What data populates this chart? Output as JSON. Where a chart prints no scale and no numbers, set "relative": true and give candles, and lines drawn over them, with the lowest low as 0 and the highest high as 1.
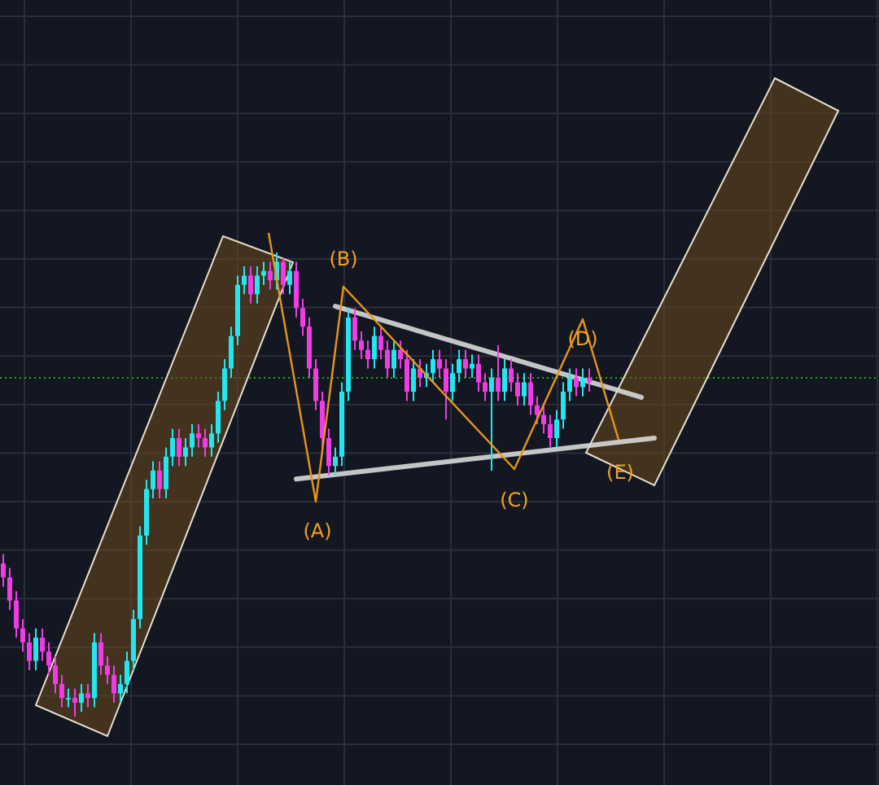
{
  "chart_data": {
    "type": "candlestick",
    "relative": true,
    "grid": true,
    "series": [
      {
        "type": "line",
        "color": "#d8d8d8",
        "values": [
          null,
          null,
          null,
          null,
          null,
          null,
          null,
          null,
          null,
          null,
          null,
          null,
          null,
          null,
          null,
          null,
          null,
          null,
          null,
          null,
          null,
          null,
          null,
          null,
          null,
          null,
          null,
          null,
          null,
          null,
          null,
          null,
          null,
          null,
          null,
          null,
          null,
          null,
          null,
          null,
          null,
          null,
          null,
          null,
          null,
          null,
          null,
          null,
          null,
          null,
          null,
          0.884,
          null,
          null,
          null,
          null,
          null,
          null,
          null,
          null,
          null,
          null,
          null,
          null,
          null,
          null,
          null,
          null,
          null,
          null,
          null,
          null,
          null,
          null,
          null,
          null,
          null,
          null,
          null,
          null,
          null,
          null,
          null,
          null,
          null,
          null,
          null,
          null,
          null,
          null,
          null,
          null,
          null,
          null,
          null,
          null,
          null,
          null,
          0.688,
          null,
          null
        ]
      },
      {
        "type": "line",
        "color": "#d8d8d8",
        "values": [
          null,
          null,
          null,
          null,
          null,
          null,
          null,
          null,
          null,
          null,
          null,
          null,
          null,
          null,
          null,
          null,
          null,
          null,
          null,
          null,
          null,
          null,
          null,
          null,
          null,
          null,
          null,
          null,
          null,
          null,
          null,
          null,
          null,
          null,
          null,
          null,
          null,
          null,
          null,
          null,
          null,
          null,
          null,
          null,
          null,
          0.512,
          null,
          null,
          null,
          null,
          null,
          null,
          null,
          null,
          null,
          null,
          null,
          null,
          null,
          null,
          null,
          null,
          null,
          null,
          null,
          null,
          null,
          null,
          null,
          null,
          null,
          null,
          null,
          null,
          null,
          null,
          null,
          null,
          null,
          null,
          null,
          null,
          null,
          null,
          null,
          null,
          null,
          null,
          null,
          null,
          null,
          null,
          null,
          null,
          null,
          null,
          null,
          null,
          null,
          null,
          0.6
        ]
      }
    ],
    "colors": [
      "#f03ce6",
      "#f03ce6",
      "#f03ce6",
      "#f03ce6",
      "#f03ce6",
      "#22e6f0",
      "#f03ce6",
      "#f03ce6",
      "#f03ce6",
      "#f03ce6",
      "#22e6f0",
      "#f03ce6",
      "#22e6f0",
      "#f03ce6",
      "#22e6f0",
      "#f03ce6",
      "#f03ce6",
      "#f03ce6",
      "#22e6f0",
      "#22e6f0",
      "#22e6f0",
      "#22e6f0",
      "#22e6f0",
      "#22e6f0",
      "#f03ce6",
      "#22e6f0",
      "#22e6f0",
      "#f03ce6",
      "#22e6f0",
      "#22e6f0",
      "#f03ce6",
      "#f03ce6",
      "#22e6f0",
      "#22e6f0",
      "#22e6f0",
      "#22e6f0",
      "#22e6f0",
      "#22e6f0",
      "#f03ce6",
      "#22e6f0",
      "#22e6f0",
      "#f03ce6",
      "#22e6f0",
      "#f03ce6",
      "#22e6f0",
      "#f03ce6",
      "#f03ce6",
      "#f03ce6",
      "#f03ce6",
      "#f03ce6",
      "#f03ce6",
      "#22e6f0",
      "#22e6f0",
      "#22e6f0",
      "#f03ce6",
      "#f03ce6",
      "#f03ce6",
      "#22e6f0",
      "#f03ce6",
      "#f03ce6",
      "#22e6f0",
      "#f03ce6",
      "#f03ce6",
      "#22e6f0",
      "#f03ce6",
      "#22e6f0",
      "#22e6f0",
      "#f03ce6",
      "#f03ce6",
      "#22e6f0",
      "#22e6f0",
      "#f03ce6",
      "#22e6f0",
      "#f03ce6",
      "#f03ce6",
      "#22e6f0",
      "#f03ce6",
      "#22e6f0",
      "#f03ce6",
      "#f03ce6",
      "#22e6f0",
      "#f03ce6",
      "#f03ce6",
      "#f03ce6",
      "#f03ce6",
      "#22e6f0",
      "#22e6f0",
      "#22e6f0",
      "#f03ce6",
      "#22e6f0",
      "#f03ce6",
      null,
      null,
      null,
      null,
      null,
      null,
      null,
      null,
      null,
      null
    ],
    "annotations": [
      "(A)",
      "(B)",
      "(C)",
      "(D)",
      "(E)"
    ],
    "ref_lines": [
      {
        "axis": "y",
        "value": 0.73,
        "color": "#22aa22",
        "line_style": "dotted"
      }
    ],
    "categories": [
      null,
      null,
      null,
      null,
      null,
      null,
      null,
      null,
      null,
      null,
      null,
      null,
      null,
      null,
      null,
      null,
      null,
      null,
      null,
      null,
      null,
      null,
      null,
      null,
      null,
      null,
      null,
      null,
      null,
      null,
      null,
      null,
      null,
      null,
      null,
      null,
      null,
      null,
      null,
      null,
      null,
      null,
      null,
      null,
      null,
      null,
      null,
      null,
      null,
      null,
      null,
      null,
      null,
      null,
      null,
      null,
      null,
      null,
      null,
      null,
      null,
      null,
      null,
      null,
      null,
      null,
      null,
      null,
      null,
      null,
      null,
      null,
      null,
      null,
      null,
      null,
      null,
      null,
      null,
      null,
      null,
      null,
      null,
      null,
      null,
      null,
      null,
      null,
      null,
      null,
      null,
      null,
      null,
      null,
      null,
      null,
      null,
      null,
      null,
      null,
      null
    ],
    "ohlc": [
      [
        0.33,
        0.35,
        0.28,
        0.3
      ],
      [
        0.3,
        0.32,
        0.23,
        0.25
      ],
      [
        0.25,
        0.27,
        0.17,
        0.19
      ],
      [
        0.19,
        0.21,
        0.14,
        0.16
      ],
      [
        0.16,
        0.18,
        0.1,
        0.12
      ],
      [
        0.12,
        0.19,
        0.1,
        0.17
      ],
      [
        0.17,
        0.19,
        0.12,
        0.14
      ],
      [
        0.14,
        0.16,
        0.09,
        0.11
      ],
      [
        0.11,
        0.13,
        0.05,
        0.07
      ],
      [
        0.07,
        0.09,
        0.02,
        0.04
      ],
      [
        0.04,
        0.06,
        0.02,
        0.04
      ],
      [
        0.04,
        0.06,
        0,
        0.03
      ],
      [
        0.03,
        0.07,
        0.01,
        0.05
      ],
      [
        0.05,
        0.07,
        0.02,
        0.04
      ],
      [
        0.04,
        0.18,
        0.02,
        0.16
      ],
      [
        0.16,
        0.18,
        0.09,
        0.11
      ],
      [
        0.11,
        0.13,
        0.07,
        0.09
      ],
      [
        0.09,
        0.11,
        0.03,
        0.05
      ],
      [
        0.05,
        0.09,
        0.03,
        0.07
      ],
      [
        0.07,
        0.14,
        0.05,
        0.12
      ],
      [
        0.12,
        0.23,
        0.1,
        0.21
      ],
      [
        0.21,
        0.41,
        0.19,
        0.39
      ],
      [
        0.39,
        0.51,
        0.37,
        0.49
      ],
      [
        0.49,
        0.55,
        0.47,
        0.53
      ],
      [
        0.53,
        0.55,
        0.47,
        0.49
      ],
      [
        0.49,
        0.58,
        0.47,
        0.56
      ],
      [
        0.56,
        0.62,
        0.54,
        0.6
      ],
      [
        0.6,
        0.62,
        0.54,
        0.56
      ],
      [
        0.56,
        0.6,
        0.54,
        0.58
      ],
      [
        0.58,
        0.63,
        0.56,
        0.61
      ],
      [
        0.61,
        0.63,
        0.58,
        0.6
      ],
      [
        0.6,
        0.62,
        0.56,
        0.58
      ],
      [
        0.58,
        0.63,
        0.56,
        0.61
      ],
      [
        0.61,
        0.7,
        0.59,
        0.68
      ],
      [
        0.68,
        0.77,
        0.66,
        0.75
      ],
      [
        0.75,
        0.84,
        0.73,
        0.82
      ],
      [
        0.82,
        0.95,
        0.8,
        0.93
      ],
      [
        0.93,
        0.97,
        0.91,
        0.95
      ],
      [
        0.95,
        0.97,
        0.89,
        0.91
      ],
      [
        0.91,
        0.97,
        0.89,
        0.95
      ],
      [
        0.95,
        0.98,
        0.93,
        0.96
      ],
      [
        0.96,
        0.98,
        0.92,
        0.94
      ],
      [
        0.94,
        1,
        0.92,
        0.98
      ],
      [
        0.98,
        0.99,
        0.91,
        0.93
      ],
      [
        0.93,
        0.98,
        0.91,
        0.96
      ],
      [
        0.96,
        0.98,
        0.86,
        0.88
      ],
      [
        0.88,
        0.9,
        0.82,
        0.84
      ],
      [
        0.84,
        0.86,
        0.73,
        0.75
      ],
      [
        0.75,
        0.77,
        0.66,
        0.68
      ],
      [
        0.68,
        0.7,
        0.58,
        0.6
      ],
      [
        0.6,
        0.62,
        0.52,
        0.54
      ],
      [
        0.54,
        0.58,
        0.52,
        0.56
      ],
      [
        0.56,
        0.72,
        0.54,
        0.7
      ],
      [
        0.7,
        0.88,
        0.68,
        0.86
      ],
      [
        0.86,
        0.88,
        0.79,
        0.81
      ],
      [
        0.81,
        0.83,
        0.77,
        0.79
      ],
      [
        0.79,
        0.81,
        0.75,
        0.77
      ],
      [
        0.77,
        0.84,
        0.75,
        0.82
      ],
      [
        0.82,
        0.84,
        0.77,
        0.79
      ],
      [
        0.79,
        0.81,
        0.73,
        0.75
      ],
      [
        0.75,
        0.81,
        0.73,
        0.79
      ],
      [
        0.79,
        0.81,
        0.75,
        0.77
      ],
      [
        0.77,
        0.79,
        0.68,
        0.7
      ],
      [
        0.7,
        0.77,
        0.68,
        0.75
      ],
      [
        0.75,
        0.77,
        0.71,
        0.73
      ],
      [
        0.73,
        0.76,
        0.71,
        0.74
      ],
      [
        0.74,
        0.79,
        0.72,
        0.77
      ],
      [
        0.77,
        0.79,
        0.73,
        0.75
      ],
      [
        0.75,
        0.77,
        0.64,
        0.7
      ],
      [
        0.7,
        0.76,
        0.68,
        0.74
      ],
      [
        0.74,
        0.79,
        0.72,
        0.77
      ],
      [
        0.77,
        0.79,
        0.73,
        0.75
      ],
      [
        0.75,
        0.78,
        0.73,
        0.76
      ],
      [
        0.76,
        0.78,
        0.7,
        0.72
      ],
      [
        0.72,
        0.74,
        0.68,
        0.7
      ],
      [
        0.7,
        0.75,
        0.53,
        0.73
      ],
      [
        0.73,
        0.8,
        0.68,
        0.7
      ],
      [
        0.7,
        0.77,
        0.68,
        0.75
      ],
      [
        0.75,
        0.77,
        0.7,
        0.72
      ],
      [
        0.72,
        0.74,
        0.67,
        0.69
      ],
      [
        0.69,
        0.74,
        0.67,
        0.72
      ],
      [
        0.72,
        0.74,
        0.65,
        0.67
      ],
      [
        0.67,
        0.69,
        0.63,
        0.65
      ],
      [
        0.65,
        0.67,
        0.61,
        0.63
      ],
      [
        0.63,
        0.65,
        0.58,
        0.6
      ],
      [
        0.6,
        0.66,
        0.58,
        0.64
      ],
      [
        0.64,
        0.72,
        0.62,
        0.7
      ],
      [
        0.7,
        0.75,
        0.68,
        0.73
      ],
      [
        0.73,
        0.75,
        0.69,
        0.71
      ],
      [
        0.71,
        0.75,
        0.69,
        0.73
      ],
      [
        0.73,
        0.75,
        0.7,
        0.72
      ],
      null,
      null,
      null,
      null,
      null,
      null,
      null,
      null,
      null,
      null
    ]
  }
}
